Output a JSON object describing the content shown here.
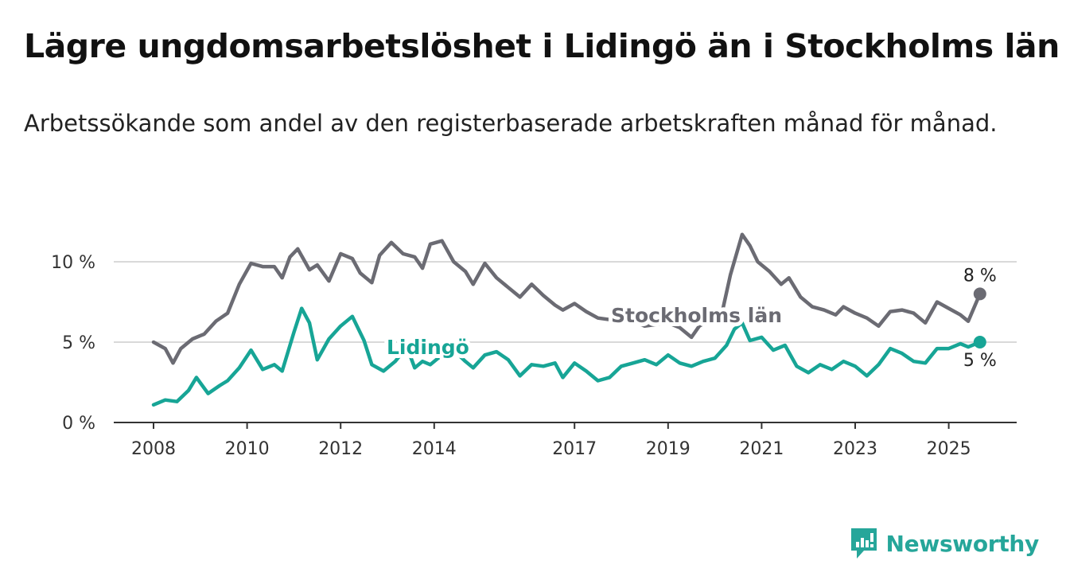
{
  "title": "Lägre ungdomsarbetslöshet i Lidingö än i Stockholms län",
  "subtitle": "Arbetssökande som andel av den registerbaserade arbetskraften månad för månad.",
  "brand": {
    "name": "Newsworthy",
    "icon": "newsworthy-logo-icon",
    "color": "#26a69a"
  },
  "chart_data": {
    "type": "line",
    "x_ticks": [
      "2008",
      "2010",
      "2012",
      "2014",
      "2017",
      "2019",
      "2021",
      "2023",
      "2025"
    ],
    "y_ticks": [
      {
        "value": 0,
        "label": "0 %"
      },
      {
        "value": 5,
        "label": "5 %"
      },
      {
        "value": 10,
        "label": "10 %"
      }
    ],
    "xlim": [
      "2008-01",
      "2025-09"
    ],
    "ylim": [
      0,
      12
    ],
    "grid": "horizontal",
    "legend": "direct labels on lines",
    "series": [
      {
        "name": "Stockholms län",
        "color": "#6b6b73",
        "end_label": "8 %",
        "points": [
          [
            "2008-01",
            5.0
          ],
          [
            "2008-04",
            4.6
          ],
          [
            "2008-06",
            3.7
          ],
          [
            "2008-08",
            4.6
          ],
          [
            "2008-11",
            5.2
          ],
          [
            "2009-02",
            5.5
          ],
          [
            "2009-05",
            6.3
          ],
          [
            "2009-08",
            6.8
          ],
          [
            "2009-11",
            8.6
          ],
          [
            "2010-02",
            9.9
          ],
          [
            "2010-05",
            9.7
          ],
          [
            "2010-08",
            9.7
          ],
          [
            "2010-10",
            9.0
          ],
          [
            "2010-12",
            10.3
          ],
          [
            "2011-02",
            10.8
          ],
          [
            "2011-05",
            9.5
          ],
          [
            "2011-07",
            9.8
          ],
          [
            "2011-10",
            8.8
          ],
          [
            "2012-01",
            10.5
          ],
          [
            "2012-04",
            10.2
          ],
          [
            "2012-06",
            9.3
          ],
          [
            "2012-09",
            8.7
          ],
          [
            "2012-11",
            10.4
          ],
          [
            "2013-02",
            11.2
          ],
          [
            "2013-05",
            10.5
          ],
          [
            "2013-08",
            10.3
          ],
          [
            "2013-10",
            9.6
          ],
          [
            "2013-12",
            11.1
          ],
          [
            "2014-03",
            11.3
          ],
          [
            "2014-06",
            10.0
          ],
          [
            "2014-09",
            9.4
          ],
          [
            "2014-11",
            8.6
          ],
          [
            "2015-02",
            9.9
          ],
          [
            "2015-05",
            9.0
          ],
          [
            "2015-08",
            8.4
          ],
          [
            "2015-11",
            7.8
          ],
          [
            "2016-02",
            8.6
          ],
          [
            "2016-05",
            7.9
          ],
          [
            "2016-08",
            7.3
          ],
          [
            "2016-10",
            7.0
          ],
          [
            "2017-01",
            7.4
          ],
          [
            "2017-04",
            6.9
          ],
          [
            "2017-07",
            6.5
          ],
          [
            "2017-10",
            6.4
          ],
          [
            "2018-01",
            6.8
          ],
          [
            "2018-04",
            6.3
          ],
          [
            "2018-07",
            6.0
          ],
          [
            "2018-10",
            6.1
          ],
          [
            "2019-01",
            6.2
          ],
          [
            "2019-04",
            5.9
          ],
          [
            "2019-07",
            5.3
          ],
          [
            "2019-09",
            6.0
          ],
          [
            "2019-12",
            6.4
          ],
          [
            "2020-03",
            7.0
          ],
          [
            "2020-05",
            9.2
          ],
          [
            "2020-08",
            11.7
          ],
          [
            "2020-10",
            11.0
          ],
          [
            "2020-12",
            10.0
          ],
          [
            "2021-03",
            9.4
          ],
          [
            "2021-06",
            8.6
          ],
          [
            "2021-08",
            9.0
          ],
          [
            "2021-11",
            7.8
          ],
          [
            "2022-02",
            7.2
          ],
          [
            "2022-05",
            7.0
          ],
          [
            "2022-08",
            6.7
          ],
          [
            "2022-10",
            7.2
          ],
          [
            "2023-01",
            6.8
          ],
          [
            "2023-04",
            6.5
          ],
          [
            "2023-07",
            6.0
          ],
          [
            "2023-10",
            6.9
          ],
          [
            "2024-01",
            7.0
          ],
          [
            "2024-04",
            6.8
          ],
          [
            "2024-07",
            6.2
          ],
          [
            "2024-10",
            7.5
          ],
          [
            "2025-01",
            7.1
          ],
          [
            "2025-04",
            6.7
          ],
          [
            "2025-06",
            6.3
          ],
          [
            "2025-09",
            8.0
          ]
        ]
      },
      {
        "name": "Lidingö",
        "color": "#17a596",
        "end_label": "5 %",
        "points": [
          [
            "2008-01",
            1.1
          ],
          [
            "2008-04",
            1.4
          ],
          [
            "2008-07",
            1.3
          ],
          [
            "2008-10",
            2.0
          ],
          [
            "2008-12",
            2.8
          ],
          [
            "2009-03",
            1.8
          ],
          [
            "2009-06",
            2.3
          ],
          [
            "2009-08",
            2.6
          ],
          [
            "2009-11",
            3.4
          ],
          [
            "2010-02",
            4.5
          ],
          [
            "2010-05",
            3.3
          ],
          [
            "2010-08",
            3.6
          ],
          [
            "2010-10",
            3.2
          ],
          [
            "2011-01",
            5.6
          ],
          [
            "2011-03",
            7.1
          ],
          [
            "2011-05",
            6.2
          ],
          [
            "2011-07",
            3.9
          ],
          [
            "2011-10",
            5.2
          ],
          [
            "2012-01",
            6.0
          ],
          [
            "2012-04",
            6.6
          ],
          [
            "2012-07",
            5.1
          ],
          [
            "2012-09",
            3.6
          ],
          [
            "2012-12",
            3.2
          ],
          [
            "2013-03",
            3.8
          ],
          [
            "2013-06",
            4.7
          ],
          [
            "2013-08",
            3.4
          ],
          [
            "2013-10",
            3.8
          ],
          [
            "2013-12",
            3.6
          ],
          [
            "2014-02",
            4.0
          ],
          [
            "2014-06",
            4.5
          ],
          [
            "2014-09",
            3.8
          ],
          [
            "2014-11",
            3.4
          ],
          [
            "2015-02",
            4.2
          ],
          [
            "2015-05",
            4.4
          ],
          [
            "2015-08",
            3.9
          ],
          [
            "2015-11",
            2.9
          ],
          [
            "2016-02",
            3.6
          ],
          [
            "2016-05",
            3.5
          ],
          [
            "2016-08",
            3.7
          ],
          [
            "2016-10",
            2.8
          ],
          [
            "2017-01",
            3.7
          ],
          [
            "2017-04",
            3.2
          ],
          [
            "2017-07",
            2.6
          ],
          [
            "2017-10",
            2.8
          ],
          [
            "2018-01",
            3.5
          ],
          [
            "2018-04",
            3.7
          ],
          [
            "2018-07",
            3.9
          ],
          [
            "2018-10",
            3.6
          ],
          [
            "2019-01",
            4.2
          ],
          [
            "2019-04",
            3.7
          ],
          [
            "2019-07",
            3.5
          ],
          [
            "2019-10",
            3.8
          ],
          [
            "2020-01",
            4.0
          ],
          [
            "2020-04",
            4.8
          ],
          [
            "2020-06",
            5.8
          ],
          [
            "2020-08",
            6.2
          ],
          [
            "2020-10",
            5.1
          ],
          [
            "2021-01",
            5.3
          ],
          [
            "2021-04",
            4.5
          ],
          [
            "2021-07",
            4.8
          ],
          [
            "2021-10",
            3.5
          ],
          [
            "2022-01",
            3.1
          ],
          [
            "2022-04",
            3.6
          ],
          [
            "2022-07",
            3.3
          ],
          [
            "2022-10",
            3.8
          ],
          [
            "2023-01",
            3.5
          ],
          [
            "2023-04",
            2.9
          ],
          [
            "2023-07",
            3.6
          ],
          [
            "2023-10",
            4.6
          ],
          [
            "2024-01",
            4.3
          ],
          [
            "2024-04",
            3.8
          ],
          [
            "2024-07",
            3.7
          ],
          [
            "2024-10",
            4.6
          ],
          [
            "2025-01",
            4.6
          ],
          [
            "2025-04",
            4.9
          ],
          [
            "2025-06",
            4.7
          ],
          [
            "2025-09",
            5.0
          ]
        ]
      }
    ]
  }
}
